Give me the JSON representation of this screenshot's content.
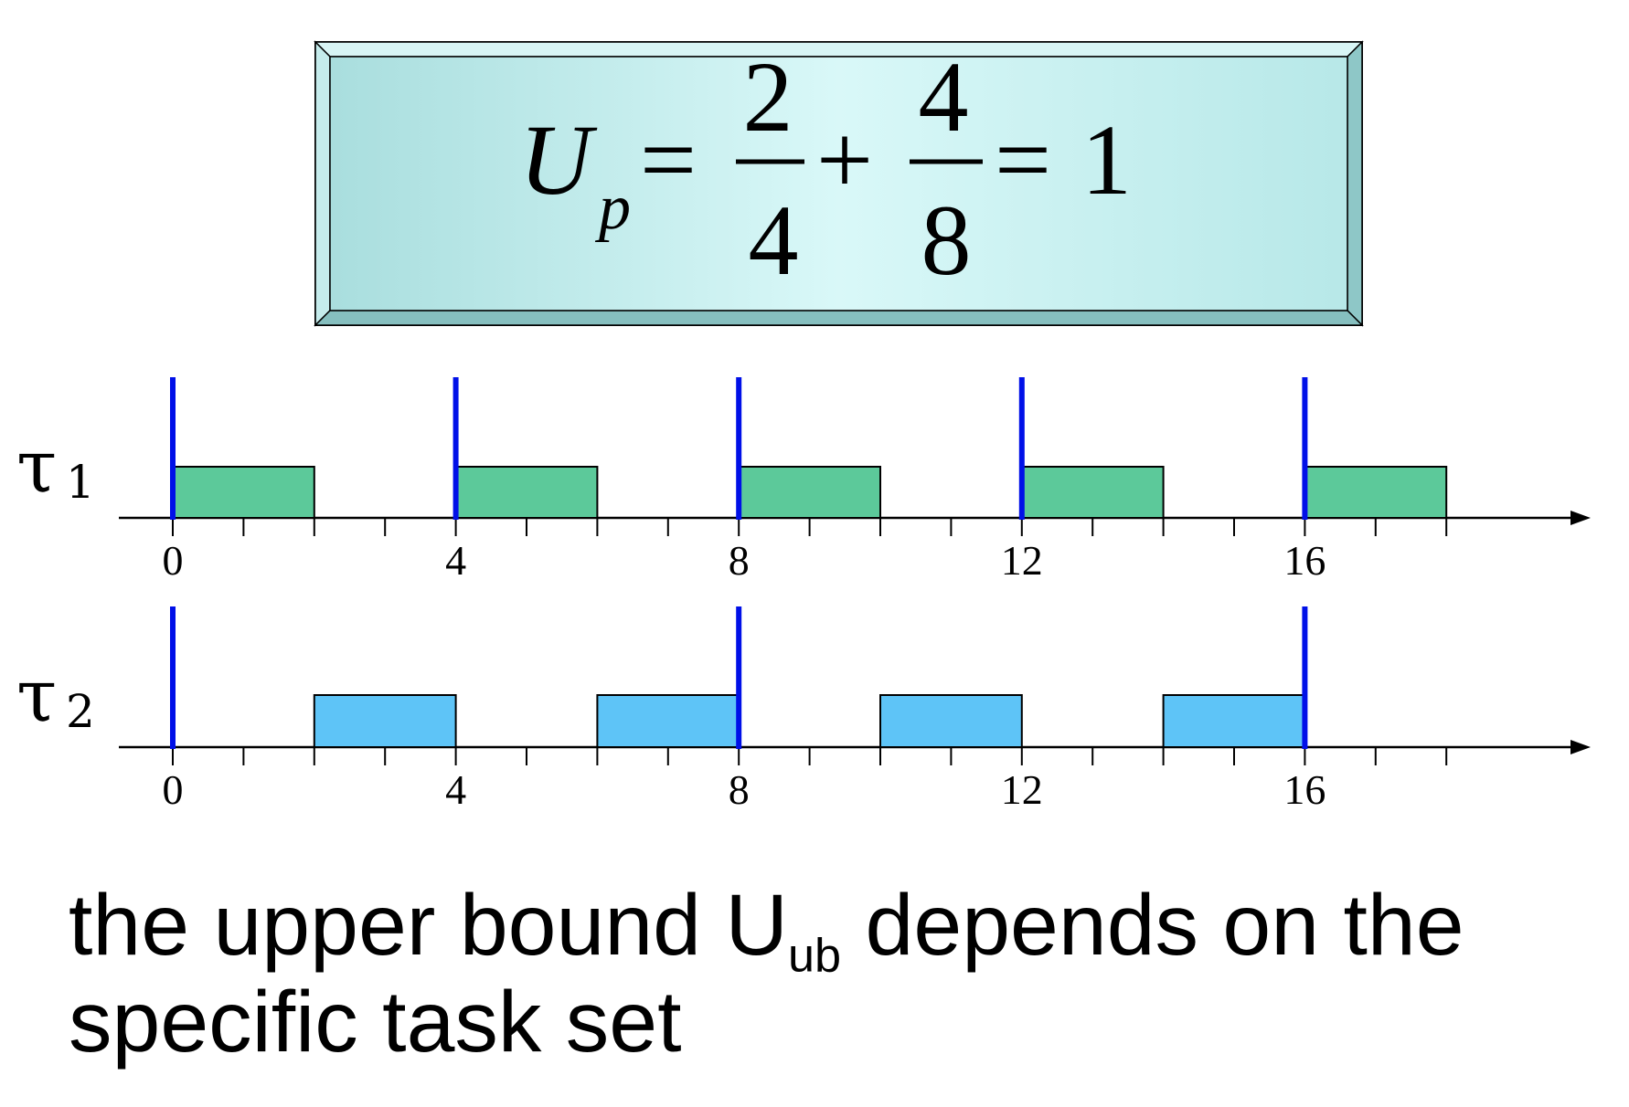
{
  "formula": {
    "lhs": "U",
    "lhs_subscript": "p",
    "equals1": "=",
    "frac1_num": "2",
    "frac1_den": "4",
    "plus": "+",
    "frac2_num": "4",
    "frac2_den": "8",
    "equals2": "=",
    "result": "1"
  },
  "colors": {
    "tau1_job": "#5cc99a",
    "tau2_job": "#5ec4f7",
    "release_marker": "#0010e8",
    "formula_box": "#c9f1f1"
  },
  "chart_data": {
    "type": "timeline",
    "axis_ticks_minor_step": 1,
    "axis_range": [
      0,
      18
    ],
    "axis_labels": [
      "0",
      "4",
      "8",
      "12",
      "16"
    ],
    "axis_label_values": [
      0,
      4,
      8,
      12,
      16
    ],
    "tasks": [
      {
        "label": "τ",
        "subscript": "1",
        "releases": [
          0,
          4,
          8,
          12,
          16
        ],
        "jobs": [
          [
            0,
            2
          ],
          [
            4,
            6
          ],
          [
            8,
            10
          ],
          [
            12,
            14
          ],
          [
            16,
            18
          ]
        ]
      },
      {
        "label": "τ",
        "subscript": "2",
        "releases": [
          0,
          8,
          16
        ],
        "jobs": [
          [
            2,
            4
          ],
          [
            6,
            8
          ],
          [
            10,
            12
          ],
          [
            14,
            16
          ]
        ]
      }
    ]
  },
  "caption": {
    "text_before": "the upper bound U",
    "subscript": "ub",
    "text_after": " depends on the specific task set"
  }
}
